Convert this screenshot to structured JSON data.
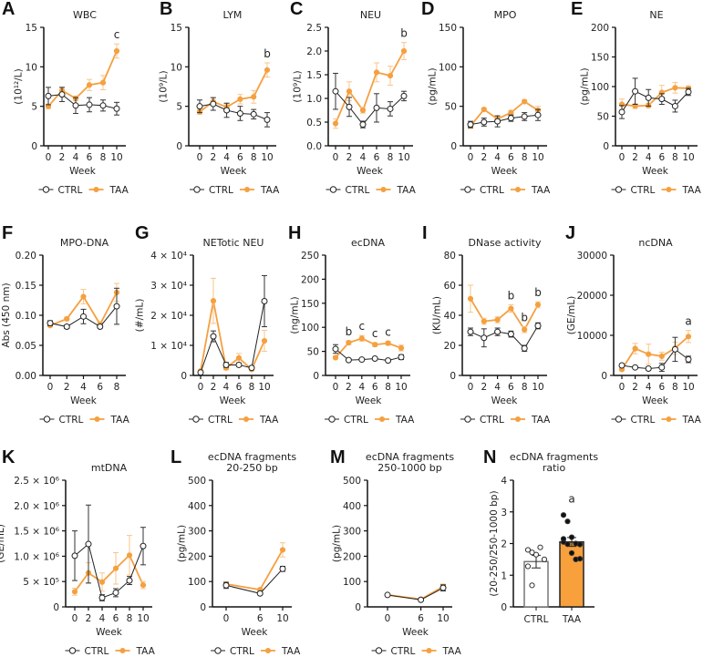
{
  "colors": {
    "ctrl": "#222222",
    "taa": "#f5a040",
    "taa_bar": "#f7a03c"
  },
  "legend": {
    "ctrl": "CTRL",
    "taa": "TAA"
  },
  "xlabel": "Week",
  "chart_data": [
    {
      "id": "A",
      "type": "line",
      "title": "WBC",
      "ylabel": "(10¹²/L)",
      "ylim": [
        0,
        15
      ],
      "yticks": [
        0,
        5,
        10,
        15
      ],
      "ytick_labels": [
        "0",
        "5",
        "10",
        "15"
      ],
      "x": [
        0,
        2,
        4,
        6,
        8,
        10
      ],
      "series": [
        {
          "name": "CTRL",
          "values": [
            6.3,
            6.5,
            5.1,
            5.2,
            5.1,
            4.7
          ],
          "err": [
            1.1,
            0.9,
            1.0,
            0.9,
            0.7,
            0.8
          ]
        },
        {
          "name": "TAA",
          "values": [
            5.0,
            7.0,
            6.0,
            7.7,
            8.0,
            12.0
          ],
          "err": [
            0.3,
            0.4,
            0.3,
            0.7,
            0.9,
            0.9
          ]
        }
      ],
      "annotations": [
        {
          "x": 10,
          "text": "c"
        }
      ]
    },
    {
      "id": "B",
      "type": "line",
      "title": "LYM",
      "ylabel": "(10⁹/L)",
      "ylim": [
        0,
        15
      ],
      "yticks": [
        0,
        5,
        10,
        15
      ],
      "ytick_labels": [
        "0",
        "5",
        "10",
        "15"
      ],
      "x": [
        0,
        2,
        4,
        6,
        8,
        10
      ],
      "series": [
        {
          "name": "CTRL",
          "values": [
            5.0,
            5.3,
            4.5,
            4.1,
            4.0,
            3.3
          ],
          "err": [
            0.8,
            0.8,
            0.9,
            0.9,
            0.6,
            0.9
          ]
        },
        {
          "name": "TAA",
          "values": [
            4.3,
            5.6,
            4.9,
            5.9,
            6.2,
            9.6
          ],
          "err": [
            0.3,
            0.5,
            0.4,
            0.6,
            0.8,
            0.9
          ]
        }
      ],
      "annotations": [
        {
          "x": 10,
          "text": "b"
        }
      ]
    },
    {
      "id": "C",
      "type": "line",
      "title": "NEU",
      "ylabel": "(10⁹/L)",
      "ylim": [
        0,
        2.5
      ],
      "yticks": [
        0,
        0.5,
        1,
        1.5,
        2,
        2.5
      ],
      "ytick_labels": [
        "0.0",
        "0.5",
        "1.0",
        "1.5",
        "2.0",
        "2.5"
      ],
      "x": [
        0,
        2,
        4,
        6,
        8,
        10
      ],
      "series": [
        {
          "name": "CTRL",
          "values": [
            1.15,
            0.82,
            0.45,
            0.8,
            0.78,
            1.05
          ],
          "err": [
            0.38,
            0.2,
            0.07,
            0.3,
            0.15,
            0.1
          ]
        },
        {
          "name": "TAA",
          "values": [
            0.47,
            1.15,
            0.75,
            1.55,
            1.48,
            2.0
          ],
          "err": [
            0.1,
            0.2,
            0.06,
            0.2,
            0.2,
            0.18
          ]
        }
      ],
      "annotations": [
        {
          "x": 10,
          "text": "b"
        }
      ]
    },
    {
      "id": "D",
      "type": "line",
      "title": "MPO",
      "ylabel": "(pg/mL)",
      "ylim": [
        0,
        150
      ],
      "yticks": [
        0,
        50,
        100,
        150
      ],
      "ytick_labels": [
        "0",
        "50",
        "100",
        "150"
      ],
      "x": [
        0,
        2,
        4,
        6,
        8,
        10
      ],
      "series": [
        {
          "name": "CTRL",
          "values": [
            27,
            30,
            31,
            35,
            37,
            39
          ],
          "err": [
            4,
            5,
            7,
            4,
            5,
            7
          ]
        },
        {
          "name": "TAA",
          "values": [
            25,
            46,
            34,
            42,
            56,
            45
          ],
          "err": [
            3,
            2,
            3,
            3,
            2,
            5
          ]
        }
      ],
      "annotations": []
    },
    {
      "id": "E",
      "type": "line",
      "title": "NE",
      "ylabel": "(pg/mL)",
      "ylim": [
        0,
        200
      ],
      "yticks": [
        0,
        50,
        100,
        150,
        200
      ],
      "ytick_labels": [
        "0",
        "50",
        "100",
        "150",
        "200"
      ],
      "x": [
        0,
        2,
        4,
        6,
        8,
        10
      ],
      "series": [
        {
          "name": "CTRL",
          "values": [
            57,
            92,
            81,
            79,
            67,
            91
          ],
          "err": [
            11,
            22,
            14,
            9,
            10,
            6
          ]
        },
        {
          "name": "TAA",
          "values": [
            70,
            67,
            68,
            90,
            98,
            97
          ],
          "err": [
            9,
            4,
            4,
            12,
            9,
            4
          ]
        }
      ],
      "annotations": []
    },
    {
      "id": "F",
      "type": "line",
      "title": "MPO-DNA",
      "ylabel": "Abs (450 nm)",
      "ylim": [
        0,
        0.2
      ],
      "yticks": [
        0,
        0.05,
        0.1,
        0.15,
        0.2
      ],
      "ytick_labels": [
        "0.00",
        "0.05",
        "0.10",
        "0.15",
        "0.20"
      ],
      "x": [
        0,
        2,
        4,
        6,
        8
      ],
      "series": [
        {
          "name": "CTRL",
          "values": [
            0.087,
            0.081,
            0.098,
            0.081,
            0.115
          ],
          "err": [
            0.004,
            0.003,
            0.012,
            0.002,
            0.03
          ]
        },
        {
          "name": "TAA",
          "values": [
            0.083,
            0.094,
            0.131,
            0.085,
            0.138
          ],
          "err": [
            0.002,
            0.003,
            0.012,
            0.002,
            0.015
          ]
        }
      ],
      "annotations": []
    },
    {
      "id": "G",
      "type": "line",
      "title": "NETotic NEU",
      "ylabel": "(#/mL)",
      "ylim": [
        0,
        40000
      ],
      "yticks": [
        0,
        10000,
        20000,
        30000,
        40000
      ],
      "ytick_labels": [
        "0",
        "1 × 10⁴",
        "2 × 10⁴",
        "3 × 10⁴",
        "4 × 10⁴"
      ],
      "x": [
        0,
        2,
        4,
        6,
        8,
        10
      ],
      "series": [
        {
          "name": "CTRL",
          "values": [
            1000,
            13000,
            3500,
            3500,
            2500,
            24700
          ],
          "err": [
            200,
            1800,
            800,
            500,
            500,
            8500
          ]
        },
        {
          "name": "TAA",
          "values": [
            1500,
            24800,
            2500,
            5800,
            2000,
            11500
          ],
          "err": [
            200,
            7500,
            600,
            1500,
            400,
            3500
          ]
        }
      ],
      "annotations": []
    },
    {
      "id": "H",
      "type": "line",
      "title": "ecDNA",
      "ylabel": "(ng/mL)",
      "ylim": [
        0,
        250
      ],
      "yticks": [
        0,
        50,
        100,
        150,
        200,
        250
      ],
      "ytick_labels": [
        "0",
        "50",
        "100",
        "150",
        "200",
        "250"
      ],
      "x": [
        0,
        2,
        4,
        6,
        8,
        10
      ],
      "series": [
        {
          "name": "CTRL",
          "values": [
            55,
            32,
            33,
            35,
            31,
            38
          ],
          "err": [
            9,
            2,
            2,
            2,
            2,
            5
          ]
        },
        {
          "name": "TAA",
          "values": [
            37,
            68,
            77,
            64,
            67,
            57
          ],
          "err": [
            3,
            4,
            6,
            4,
            4,
            6
          ]
        }
      ],
      "annotations": [
        {
          "x": 2,
          "text": "b"
        },
        {
          "x": 4,
          "text": "c"
        },
        {
          "x": 6,
          "text": "c"
        },
        {
          "x": 8,
          "text": "c"
        }
      ]
    },
    {
      "id": "I",
      "type": "line",
      "title": "DNase activity",
      "ylabel": "(KU/mL)",
      "ylim": [
        0,
        80
      ],
      "yticks": [
        0,
        20,
        40,
        60,
        80
      ],
      "ytick_labels": [
        "0",
        "20",
        "40",
        "60",
        "80"
      ],
      "x": [
        0,
        2,
        4,
        6,
        8,
        10
      ],
      "series": [
        {
          "name": "CTRL",
          "values": [
            29,
            25,
            29,
            27.5,
            18,
            33
          ],
          "err": [
            2.5,
            6,
            2.5,
            2,
            2,
            2
          ]
        },
        {
          "name": "TAA",
          "values": [
            51,
            36,
            37,
            44.5,
            30.5,
            47
          ],
          "err": [
            9,
            2,
            2,
            2.5,
            2,
            2
          ]
        }
      ],
      "annotations": [
        {
          "x": 6,
          "text": "b"
        },
        {
          "x": 8,
          "text": "b"
        },
        {
          "x": 10,
          "text": "b"
        }
      ]
    },
    {
      "id": "J",
      "type": "line",
      "title": "ncDNA",
      "ylabel": "(GE/mL)",
      "ylim": [
        0,
        30000
      ],
      "yticks": [
        0,
        10000,
        20000,
        30000
      ],
      "ytick_labels": [
        "0",
        "10000",
        "20000",
        "30000"
      ],
      "x": [
        0,
        2,
        4,
        6,
        8,
        10
      ],
      "series": [
        {
          "name": "CTRL",
          "values": [
            2500,
            2000,
            1700,
            2000,
            6500,
            4000
          ],
          "err": [
            300,
            300,
            300,
            1000,
            3000,
            800
          ]
        },
        {
          "name": "TAA",
          "values": [
            1500,
            6700,
            5300,
            4800,
            6800,
            9700
          ],
          "err": [
            300,
            1300,
            2500,
            1000,
            1500,
            1500
          ]
        }
      ],
      "annotations": [
        {
          "x": 10,
          "text": "a"
        }
      ]
    },
    {
      "id": "K",
      "type": "line",
      "title": "mtDNA",
      "ylabel": "(GE/mL)",
      "ylim": [
        0,
        2500000
      ],
      "yticks": [
        0,
        500000,
        1000000,
        1500000,
        2000000,
        2500000
      ],
      "ytick_labels": [
        "0",
        "5 × 10⁵",
        "1.0 × 10⁶",
        "1.5 × 10⁶",
        "2.0 × 10⁶",
        "2.5 × 10⁶"
      ],
      "x": [
        0,
        2,
        4,
        6,
        8,
        10
      ],
      "series": [
        {
          "name": "CTRL",
          "values": [
            1010000,
            1240000,
            180000,
            280000,
            520000,
            1200000
          ],
          "err": [
            490000,
            770000,
            60000,
            80000,
            80000,
            370000
          ]
        },
        {
          "name": "TAA",
          "values": [
            300000,
            670000,
            490000,
            760000,
            1020000,
            430000
          ],
          "err": [
            70000,
            200000,
            180000,
            310000,
            390000,
            70000
          ]
        }
      ],
      "annotations": []
    },
    {
      "id": "L",
      "type": "line",
      "title": "ecDNA fragments",
      "title2": "20-250 bp",
      "ylabel": "(pg/mL)",
      "ylim": [
        0,
        500
      ],
      "yticks": [
        0,
        100,
        200,
        300,
        400,
        500
      ],
      "ytick_labels": [
        "0",
        "100",
        "200",
        "300",
        "400",
        "500"
      ],
      "x": [
        0,
        6,
        10
      ],
      "series": [
        {
          "name": "CTRL",
          "values": [
            85,
            53,
            150
          ],
          "err": [
            12,
            4,
            10
          ]
        },
        {
          "name": "TAA",
          "values": [
            90,
            68,
            225
          ],
          "err": [
            8,
            5,
            28
          ]
        }
      ],
      "annotations": []
    },
    {
      "id": "M",
      "type": "line",
      "title": "ecDNA fragments",
      "title2": "250-1000 bp",
      "ylabel": "(pg/mL)",
      "ylim": [
        0,
        500
      ],
      "yticks": [
        0,
        100,
        200,
        300,
        400,
        500
      ],
      "ytick_labels": [
        "0",
        "100",
        "200",
        "300",
        "400",
        "500"
      ],
      "x": [
        0,
        6,
        10
      ],
      "series": [
        {
          "name": "CTRL",
          "values": [
            47,
            28,
            75
          ],
          "err": [
            4,
            3,
            12
          ]
        },
        {
          "name": "TAA",
          "values": [
            47,
            30,
            80
          ],
          "err": [
            3,
            2,
            10
          ]
        }
      ],
      "annotations": []
    },
    {
      "id": "N",
      "type": "bar",
      "title": "ecDNA fragments",
      "title2": "ratio",
      "ylabel": "(20-250/250-1000 bp)",
      "ylim": [
        0,
        4
      ],
      "yticks": [
        0,
        1,
        2,
        3,
        4
      ],
      "ytick_labels": [
        "0",
        "1",
        "2",
        "3",
        "4"
      ],
      "categories": [
        "CTRL",
        "TAA"
      ],
      "values": [
        1.43,
        2.05
      ],
      "err": [
        0.2,
        0.14
      ],
      "points": [
        [
          1.8,
          1.72,
          1.65,
          1.88,
          1.5,
          1.28,
          0.68
        ],
        [
          2.9,
          2.7,
          2.2,
          2.0,
          1.97,
          2.05,
          1.98,
          1.7,
          1.5,
          1.52,
          2.15
        ]
      ],
      "annotations": [
        {
          "category": "TAA",
          "text": "a"
        }
      ]
    }
  ]
}
